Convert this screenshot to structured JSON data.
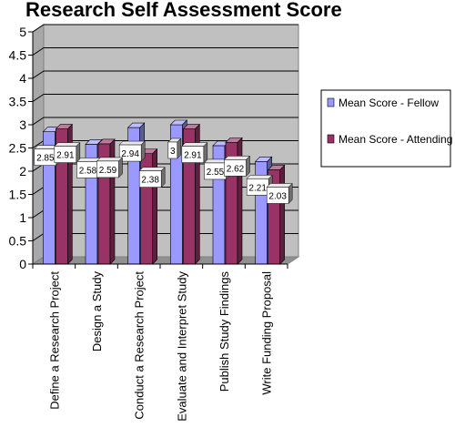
{
  "chart_data": {
    "type": "bar",
    "title": "Research Self Assessment Score",
    "categories": [
      "Define a Research Project",
      "Design a Study",
      "Conduct a Research Project",
      "Evaluate and Interpret Study",
      "Publish Study Findings",
      "Write Funding Proposal"
    ],
    "series": [
      {
        "name": "Mean Score - Fellow",
        "values": [
          2.85,
          2.58,
          2.94,
          3,
          2.55,
          2.21
        ],
        "color": "#9999ff"
      },
      {
        "name": "Mean Score - Attending",
        "values": [
          2.91,
          2.59,
          2.38,
          2.91,
          2.62,
          2.03
        ],
        "color": "#993366"
      }
    ],
    "data_labels": [
      [
        "2.85",
        "2.58",
        "2.94",
        "3",
        "2.55",
        "2.21"
      ],
      [
        "2.91",
        "2.59",
        "2.38",
        "2.91",
        "2.62",
        "2.03"
      ]
    ],
    "y_ticks": [
      "0",
      "0.5",
      "1",
      "1.5",
      "2",
      "2.5",
      "3",
      "3.5",
      "4",
      "4.5",
      "5"
    ],
    "ylim": [
      0,
      5
    ],
    "xlabel": "",
    "ylabel": "",
    "grid": true,
    "legend_position": "right",
    "plot_background": "#c0c0c0"
  }
}
